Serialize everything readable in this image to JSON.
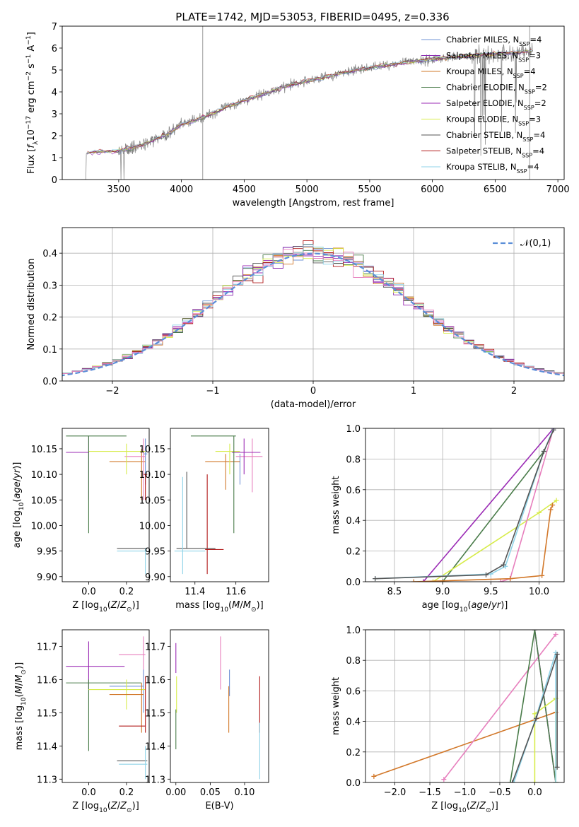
{
  "title": "PLATE=1742, MJD=53053, FIBERID=0495, z=0.336",
  "colors": {
    "Chabrier MILES": "#6f93d6",
    "Salpeter MILES": "#8b2bb0",
    "Kroupa MILES": "#d2782a",
    "Chabrier ELODIE": "#4a7c4a",
    "Salpeter ELODIE": "#9b2bb5",
    "Kroupa ELODIE": "#d7ec4a",
    "Chabrier STELIB": "#555555",
    "Salpeter STELIB": "#b21a1a",
    "Kroupa STELIB": "#8fd3e8",
    "pink": "#e77fbd",
    "data": "#7f7f7f",
    "normal": "#5b8ed8"
  },
  "chart_data": [
    {
      "type": "line",
      "title": "PLATE=1742, MJD=53053, FIBERID=0495, z=0.336",
      "xlabel": "wavelength [Angstrom, rest frame]",
      "ylabel": "Flux [f_λ 10^-17 erg cm^-2 s^-1 A^-1]",
      "xlim": [
        3050,
        7050
      ],
      "ylim": [
        0,
        7
      ],
      "xticks": [
        3500,
        4000,
        4500,
        5000,
        5500,
        6000,
        6500,
        7000
      ],
      "yticks": [
        0,
        1,
        2,
        3,
        4,
        5,
        6,
        7
      ],
      "legend_position": "top-right",
      "legend": [
        "Chabrier MILES, N_SSP=4",
        "Salpeter MILES, N_SSP=3",
        "Kroupa MILES, N_SSP=4",
        "Chabrier ELODIE, N_SSP=2",
        "Salpeter ELODIE, N_SSP=2",
        "Kroupa ELODIE, N_SSP=3",
        "Chabrier STELIB, N_SSP=4",
        "Salpeter STELIB, N_SSP=4",
        "Kroupa STELIB, N_SSP=4"
      ],
      "continuum": {
        "x": [
          3200,
          3300,
          3500,
          3700,
          3900,
          4000,
          4200,
          4400,
          4600,
          4800,
          5000,
          5200,
          5400,
          5600,
          5800,
          6000,
          6200,
          6500,
          6800
        ],
        "y": [
          1.15,
          1.25,
          1.3,
          1.6,
          2.1,
          2.5,
          2.9,
          3.4,
          3.8,
          4.2,
          4.5,
          4.75,
          5.0,
          5.2,
          5.35,
          5.5,
          5.6,
          5.75,
          5.85
        ]
      }
    },
    {
      "type": "line",
      "xlabel": "(data-model)/error",
      "ylabel": "Normed distribution",
      "xlim": [
        -2.5,
        2.5
      ],
      "ylim": [
        0,
        0.48
      ],
      "xticks": [
        -2,
        -1,
        0,
        1,
        2
      ],
      "yticks": [
        0.0,
        0.1,
        0.2,
        0.3,
        0.4
      ],
      "grid": true,
      "legend": [
        "𝒩(0,1)"
      ],
      "legend_position": "top-right",
      "hist_bin_width": 0.1
    },
    {
      "type": "scatter",
      "xlabel": "Z [log10(Z/Z⊙)]",
      "ylabel": "age  [log10(age/yr)]",
      "xlim": [
        -0.14,
        0.32
      ],
      "ylim": [
        9.89,
        10.19
      ],
      "xticks": [
        0.0,
        0.2
      ],
      "yticks": [
        9.9,
        9.95,
        10.0,
        10.05,
        10.1,
        10.15
      ],
      "points": [
        {
          "c": "Chabrier MILES",
          "x": 0.3,
          "y": 10.14,
          "xe": [
            0.29,
            0.31
          ],
          "ye": [
            10.08,
            10.17
          ]
        },
        {
          "c": "Kroupa MILES",
          "x": 0.28,
          "y": 10.125,
          "xe": [
            0.11,
            0.3
          ],
          "ye": [
            10.05,
            10.15
          ]
        },
        {
          "c": "pink",
          "x": 0.29,
          "y": 10.135,
          "xe": [
            0.19,
            0.3
          ],
          "ye": [
            10.05,
            10.17
          ]
        },
        {
          "c": "Salpeter ELODIE",
          "x": 0.0,
          "y": 10.143,
          "xe": [
            -0.12,
            0.0
          ],
          "ye": [
            10.05,
            10.175
          ]
        },
        {
          "c": "Kroupa ELODIE",
          "x": 0.2,
          "y": 10.145,
          "xe": [
            0.0,
            0.3
          ],
          "ye": [
            10.1,
            10.16
          ]
        },
        {
          "c": "Chabrier ELODIE",
          "x": 0.0,
          "y": 10.175,
          "xe": [
            -0.12,
            0.2
          ],
          "ye": [
            9.985,
            10.175
          ]
        },
        {
          "c": "Salpeter STELIB",
          "x": 0.3,
          "y": 10.1,
          "xe": [
            0.29,
            0.31
          ],
          "ye": [
            10.05,
            10.1
          ]
        },
        {
          "c": "Chabrier STELIB",
          "x": 0.3,
          "y": 9.955,
          "xe": [
            0.15,
            0.31
          ],
          "ye": [
            9.955,
            9.955
          ]
        },
        {
          "c": "Kroupa STELIB",
          "x": 0.3,
          "y": 9.95,
          "xe": [
            0.15,
            0.31
          ],
          "ye": [
            9.905,
            9.955
          ]
        }
      ]
    },
    {
      "type": "scatter",
      "xlabel": "mass [log10(M/M⊙)]",
      "ylabel": "",
      "xlim": [
        11.28,
        11.76
      ],
      "ylim": [
        9.89,
        10.19
      ],
      "xticks": [
        11.4,
        11.6
      ],
      "yticks": [
        9.9,
        9.95,
        10.0,
        10.05,
        10.1,
        10.15
      ],
      "points": [
        {
          "c": "Chabrier MILES",
          "x": 11.62,
          "y": 10.125,
          "xe": [
            11.55,
            11.62
          ],
          "ye": [
            10.08,
            10.14
          ]
        },
        {
          "c": "Kroupa MILES",
          "x": 11.55,
          "y": 10.125,
          "xe": [
            11.45,
            11.62
          ],
          "ye": [
            10.07,
            10.14
          ]
        },
        {
          "c": "pink",
          "x": 11.68,
          "y": 10.135,
          "xe": [
            11.6,
            11.73
          ],
          "ye": [
            10.065,
            10.17
          ]
        },
        {
          "c": "Salpeter ELODIE",
          "x": 11.64,
          "y": 10.143,
          "xe": [
            11.58,
            11.72
          ],
          "ye": [
            10.1,
            10.17
          ]
        },
        {
          "c": "Kroupa ELODIE",
          "x": 11.57,
          "y": 10.145,
          "xe": [
            11.5,
            11.62
          ],
          "ye": [
            10.1,
            10.16
          ]
        },
        {
          "c": "Chabrier ELODIE",
          "x": 11.59,
          "y": 10.175,
          "xe": [
            11.38,
            11.6
          ],
          "ye": [
            9.985,
            10.175
          ]
        },
        {
          "c": "Salpeter STELIB",
          "x": 11.46,
          "y": 9.953,
          "xe": [
            11.45,
            11.54
          ],
          "ye": [
            9.905,
            10.1
          ]
        },
        {
          "c": "Chabrier STELIB",
          "x": 11.36,
          "y": 9.955,
          "xe": [
            11.31,
            11.5
          ],
          "ye": [
            9.955,
            10.105
          ]
        },
        {
          "c": "Kroupa STELIB",
          "x": 11.34,
          "y": 9.95,
          "xe": [
            11.3,
            11.45
          ],
          "ye": [
            9.905,
            10.095
          ]
        }
      ]
    },
    {
      "type": "line",
      "xlabel": "age  [log10(age/yr)]",
      "ylabel": "mass weight",
      "xlim": [
        8.2,
        10.26
      ],
      "ylim": [
        0,
        1
      ],
      "xticks": [
        8.5,
        9.0,
        9.5,
        10.0
      ],
      "yticks": [
        0.0,
        0.2,
        0.4,
        0.6,
        0.8,
        1.0
      ],
      "grid": true,
      "series": [
        {
          "c": "Salpeter ELODIE",
          "x": [
            8.8,
            10.15
          ],
          "y": [
            0.0,
            1.0
          ]
        },
        {
          "c": "Chabrier ELODIE",
          "x": [
            9.0,
            10.05
          ],
          "y": [
            0.0,
            0.85
          ]
        },
        {
          "c": "Kroupa ELODIE",
          "x": [
            8.9,
            10.0,
            10.18
          ],
          "y": [
            0.0,
            0.45,
            0.53
          ]
        },
        {
          "c": "pink",
          "x": [
            9.6,
            9.7,
            10.15
          ],
          "y": [
            0.0,
            0.02,
            1.0
          ]
        },
        {
          "c": "Kroupa MILES",
          "x": [
            8.7,
            9.7,
            10.03,
            10.12,
            10.14
          ],
          "y": [
            0.0,
            0.02,
            0.04,
            0.47,
            0.5
          ]
        },
        {
          "c": "Kroupa STELIB",
          "x": [
            8.3,
            9.5,
            9.65,
            10.05,
            10.15
          ],
          "y": [
            0.02,
            0.05,
            0.1,
            0.85,
            1.0
          ]
        },
        {
          "c": "Chabrier STELIB",
          "x": [
            8.3,
            9.45,
            9.63,
            10.05,
            10.15
          ],
          "y": [
            0.02,
            0.045,
            0.11,
            0.85,
            0.99
          ]
        }
      ]
    },
    {
      "type": "scatter",
      "xlabel": "Z [log10(Z/Z⊙)]",
      "ylabel": "mass [log10(M/M⊙)]",
      "xlim": [
        -0.14,
        0.32
      ],
      "ylim": [
        11.29,
        11.75
      ],
      "xticks": [
        0.0,
        0.2
      ],
      "yticks": [
        11.3,
        11.4,
        11.5,
        11.6,
        11.7
      ],
      "points": [
        {
          "c": "Salpeter ELODIE",
          "x": 0.0,
          "y": 11.64,
          "xe": [
            -0.12,
            0.19
          ],
          "ye": [
            11.57,
            11.715
          ]
        },
        {
          "c": "Chabrier ELODIE",
          "x": 0.0,
          "y": 11.59,
          "xe": [
            -0.12,
            0.28
          ],
          "ye": [
            11.385,
            11.6
          ]
        },
        {
          "c": "pink",
          "x": 0.29,
          "y": 11.675,
          "xe": [
            0.16,
            0.3
          ],
          "ye": [
            11.6,
            11.73
          ]
        },
        {
          "c": "Chabrier MILES",
          "x": 0.29,
          "y": 11.58,
          "xe": [
            0.11,
            0.29
          ],
          "ye": [
            11.5,
            11.63
          ]
        },
        {
          "c": "Kroupa ELODIE",
          "x": 0.2,
          "y": 11.57,
          "xe": [
            0.0,
            0.3
          ],
          "ye": [
            11.51,
            11.6
          ]
        },
        {
          "c": "Kroupa MILES",
          "x": 0.28,
          "y": 11.555,
          "xe": [
            0.11,
            0.29
          ],
          "ye": [
            11.44,
            11.59
          ]
        },
        {
          "c": "Salpeter STELIB",
          "x": 0.3,
          "y": 11.46,
          "xe": [
            0.16,
            0.3
          ],
          "ye": [
            11.44,
            11.61
          ]
        },
        {
          "c": "Chabrier STELIB",
          "x": 0.3,
          "y": 11.355,
          "xe": [
            0.15,
            0.31
          ],
          "ye": [
            11.355,
            11.355
          ]
        },
        {
          "c": "Kroupa STELIB",
          "x": 0.3,
          "y": 11.345,
          "xe": [
            0.16,
            0.31
          ],
          "ye": [
            11.3,
            11.4
          ]
        }
      ]
    },
    {
      "type": "scatter",
      "xlabel": "E(B-V)",
      "ylabel": "",
      "xlim": [
        -0.008,
        0.135
      ],
      "ylim": [
        11.29,
        11.75
      ],
      "xticks": [
        0.0,
        0.05,
        0.1
      ],
      "yticks": [
        11.3,
        11.4,
        11.5,
        11.6,
        11.7
      ],
      "points": [
        {
          "c": "Salpeter ELODIE",
          "x": 0.0,
          "y": 11.65,
          "ye": [
            11.62,
            11.71
          ]
        },
        {
          "c": "Kroupa ELODIE",
          "x": 0.001,
          "y": 11.55,
          "ye": [
            11.5,
            11.61
          ]
        },
        {
          "c": "Chabrier ELODIE",
          "x": 0.0,
          "y": 11.45,
          "ye": [
            11.39,
            11.51
          ]
        },
        {
          "c": "pink",
          "x": 0.065,
          "y": 11.66,
          "ye": [
            11.57,
            11.73
          ]
        },
        {
          "c": "Chabrier MILES",
          "x": 0.078,
          "y": 11.6,
          "ye": [
            11.55,
            11.63
          ]
        },
        {
          "c": "Kroupa MILES",
          "x": 0.077,
          "y": 11.5,
          "ye": [
            11.44,
            11.58
          ]
        },
        {
          "c": "Salpeter STELIB",
          "x": 0.122,
          "y": 11.55,
          "ye": [
            11.44,
            11.61
          ]
        },
        {
          "c": "Kroupa STELIB",
          "x": 0.122,
          "y": 11.4,
          "ye": [
            11.3,
            11.47
          ]
        }
      ]
    },
    {
      "type": "line",
      "xlabel": "Z [log10(Z/Z⊙)]",
      "ylabel": "mass weight",
      "xlim": [
        -2.42,
        0.42
      ],
      "ylim": [
        0,
        1
      ],
      "xticks": [
        -2.0,
        -1.5,
        -1.0,
        -0.5,
        0.0
      ],
      "yticks": [
        0.0,
        0.2,
        0.4,
        0.6,
        0.8,
        1.0
      ],
      "grid": true,
      "series": [
        {
          "c": "Kroupa MILES",
          "x": [
            -2.3,
            0.3
          ],
          "y": [
            0.04,
            0.46
          ]
        },
        {
          "c": "pink",
          "x": [
            -1.3,
            0.3
          ],
          "y": [
            0.02,
            0.97
          ]
        },
        {
          "c": "Salpeter ELODIE",
          "x": [
            0.0,
            0.3
          ],
          "y": [
            1.0,
            0.0
          ]
        },
        {
          "c": "Chabrier ELODIE",
          "x": [
            -0.35,
            0.0,
            0.3
          ],
          "y": [
            0.0,
            1.0,
            0.0
          ]
        },
        {
          "c": "Kroupa ELODIE",
          "x": [
            0.0,
            0.0,
            0.3,
            0.3
          ],
          "y": [
            0.0,
            0.45,
            0.55,
            0.0
          ]
        },
        {
          "c": "Kroupa STELIB",
          "x": [
            -0.3,
            0.0,
            0.3,
            0.3
          ],
          "y": [
            0.0,
            0.4,
            0.85,
            0.0
          ]
        },
        {
          "c": "Chabrier STELIB",
          "x": [
            -0.32,
            0.02,
            0.32,
            0.32
          ],
          "y": [
            0.0,
            0.42,
            0.84,
            0.1
          ]
        }
      ]
    }
  ]
}
